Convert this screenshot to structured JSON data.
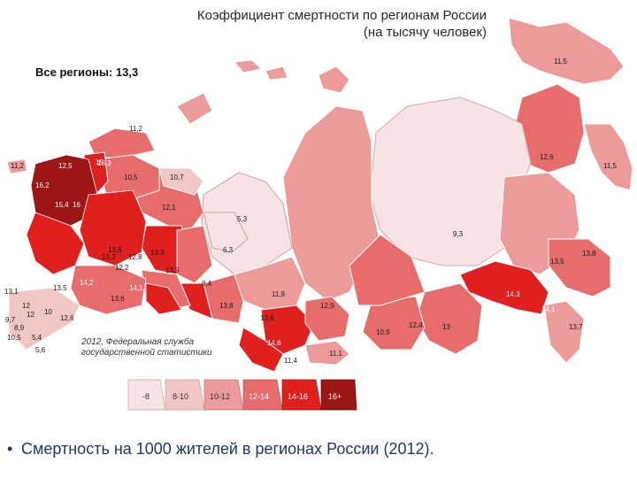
{
  "title": {
    "line1": "Коэффициент смертности по регионам России",
    "line2": "(на тысячу человек)"
  },
  "all_regions": "Все регионы: 13,3",
  "source": {
    "line1": "2012, Федеральная служба",
    "line2": "государственной статистики"
  },
  "legend": [
    {
      "label": "-8",
      "color": "#f7e3e3"
    },
    {
      "label": "8-10",
      "color": "#f3c6c6"
    },
    {
      "label": "10-12",
      "color": "#ec9a9a"
    },
    {
      "label": "12-14",
      "color": "#e76d6d"
    },
    {
      "label": "14-16",
      "color": "#e01f1f"
    },
    {
      "label": "16+",
      "color": "#9c1616"
    }
  ],
  "region_labels": [
    "11,5",
    "12,6",
    "11,5",
    "9,3",
    "13,8",
    "13,5",
    "14,3",
    "13,7",
    "14,1",
    "11,2",
    "11,2",
    "10,5",
    "10,7",
    "12,1",
    "5,3",
    "6,3",
    "8,4",
    "11,9",
    "12,9",
    "13,6",
    "14,6",
    "11,4",
    "11,1",
    "10,9",
    "12,4",
    "13",
    "13,1",
    "12,6",
    "9,7",
    "8,9",
    "10,5",
    "5,4",
    "5,6",
    "13,9",
    "13,8",
    "13,6",
    "13,5",
    "12,2",
    "14,1",
    "16,2",
    "15",
    "16",
    "13,6",
    "12,8",
    "13,3",
    "12,5",
    "16,3",
    "13,3",
    "14,2",
    "15,4",
    "12",
    "10",
    "12"
  ],
  "caption": "Смертность на 1000 жителей в регионах России (2012)."
}
